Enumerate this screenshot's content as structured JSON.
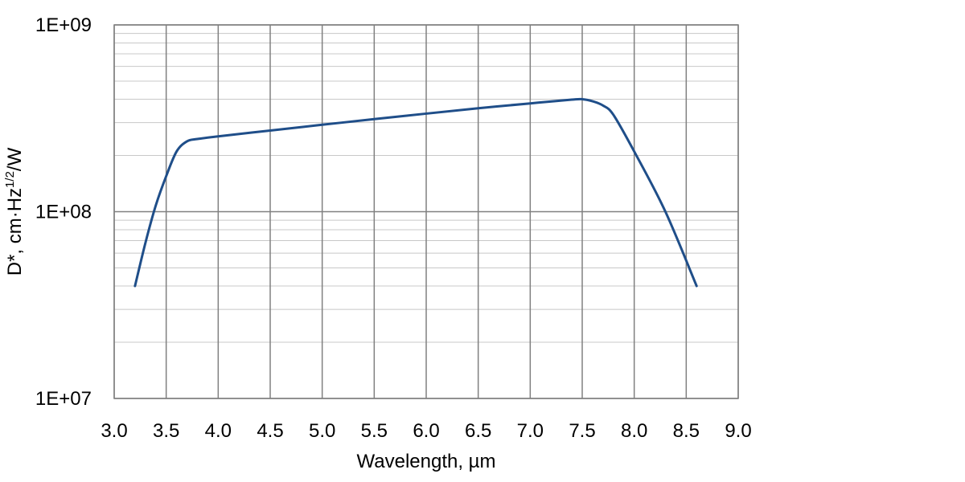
{
  "chart_data": {
    "type": "line",
    "xlabel": "Wavelength, µm",
    "ylabel": {
      "main": "D*, cm·Hz",
      "superscript": "1/2",
      "suffix": "/W"
    },
    "xlim": [
      3.0,
      9.0
    ],
    "ylim": [
      10000000,
      1000000000
    ],
    "yscale": "log",
    "grid": true,
    "legend": "none",
    "x_ticks": [
      "3.0",
      "3.5",
      "4.0",
      "4.5",
      "5.0",
      "5.5",
      "6.0",
      "6.5",
      "7.0",
      "7.5",
      "8.0",
      "8.5",
      "9.0"
    ],
    "y_ticks": [
      {
        "value": 10000000,
        "label": "1E+07"
      },
      {
        "value": 100000000,
        "label": "1E+08"
      },
      {
        "value": 1000000000,
        "label": "1E+09"
      }
    ],
    "series": [
      {
        "color": "#1f4e89",
        "x": [
          3.2,
          3.3,
          3.4,
          3.5,
          3.6,
          3.7,
          3.8,
          4.0,
          4.5,
          5.0,
          5.5,
          6.0,
          6.5,
          7.0,
          7.4,
          7.5,
          7.6,
          7.7,
          7.8,
          8.0,
          8.3,
          8.6
        ],
        "y": [
          40000000,
          68000000,
          108000000,
          155000000,
          210000000,
          238000000,
          245000000,
          253000000,
          272000000,
          292000000,
          313000000,
          335000000,
          358000000,
          380000000,
          398000000,
          400000000,
          390000000,
          370000000,
          330000000,
          210000000,
          100000000,
          40000000
        ]
      }
    ]
  },
  "colors": {
    "background": "#ffffff",
    "grid_major": "#808080",
    "grid_minor": "#c8c8c8",
    "series": "#1f4e89"
  }
}
